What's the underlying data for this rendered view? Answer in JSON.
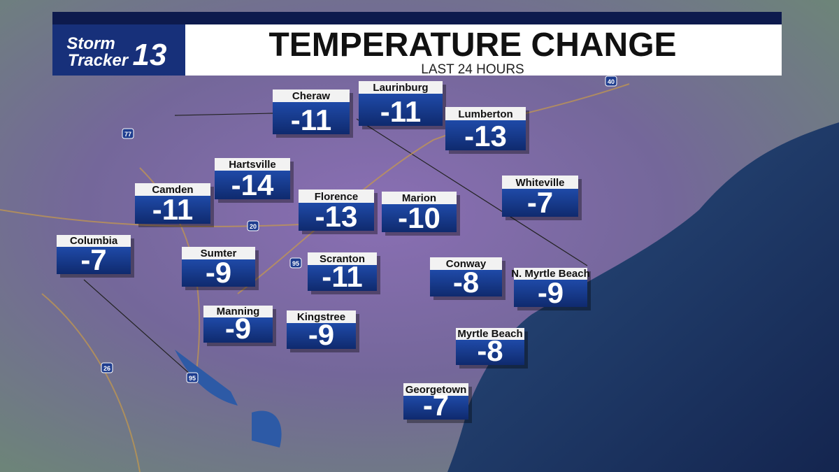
{
  "header": {
    "title": "TEMPERATURE CHANGE",
    "subtitle": "LAST 24 HOURS"
  },
  "logo": {
    "line1": "Storm",
    "line2": "Tracker",
    "number": "13"
  },
  "shields": [
    "77",
    "20",
    "95",
    "26",
    "95",
    "40"
  ],
  "cities": [
    {
      "name": "Cheraw",
      "value": -11
    },
    {
      "name": "Laurinburg",
      "value": -11
    },
    {
      "name": "Lumberton",
      "value": -13
    },
    {
      "name": "Hartsville",
      "value": -14
    },
    {
      "name": "Camden",
      "value": -11
    },
    {
      "name": "Florence",
      "value": -13
    },
    {
      "name": "Marion",
      "value": -10
    },
    {
      "name": "Whiteville",
      "value": -7
    },
    {
      "name": "Columbia",
      "value": -7
    },
    {
      "name": "Sumter",
      "value": -9
    },
    {
      "name": "Scranton",
      "value": -11
    },
    {
      "name": "Conway",
      "value": -8
    },
    {
      "name": "N. Myrtle Beach",
      "value": -9
    },
    {
      "name": "Manning",
      "value": -9
    },
    {
      "name": "Kingstree",
      "value": -9
    },
    {
      "name": "Myrtle Beach",
      "value": -8
    },
    {
      "name": "Georgetown",
      "value": -7
    }
  ]
}
